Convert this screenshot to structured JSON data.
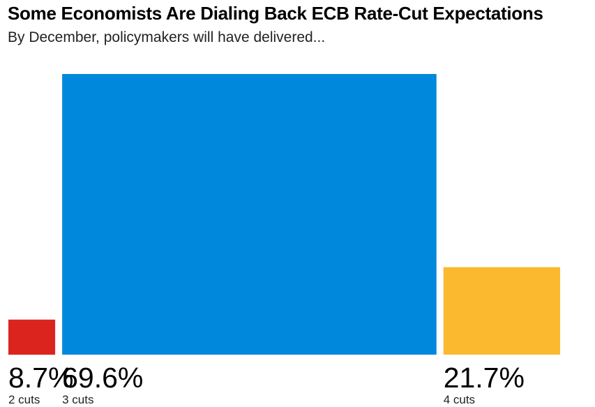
{
  "chart_data": {
    "type": "bar",
    "title": "Some Economists Are Dialing Back ECB Rate-Cut Expectations",
    "subtitle": "By December, policymakers will have delivered...",
    "categories": [
      "2 cuts",
      "3 cuts",
      "4 cuts"
    ],
    "values": [
      8.7,
      69.6,
      21.7
    ],
    "value_labels": [
      "8.7%",
      "69.6%",
      "21.7%"
    ],
    "unit": "%",
    "colors": [
      "#dc241f",
      "#0088dd",
      "#fbb930"
    ],
    "bar_width_proportional_to_value": true,
    "grid": false,
    "legend": "none"
  }
}
